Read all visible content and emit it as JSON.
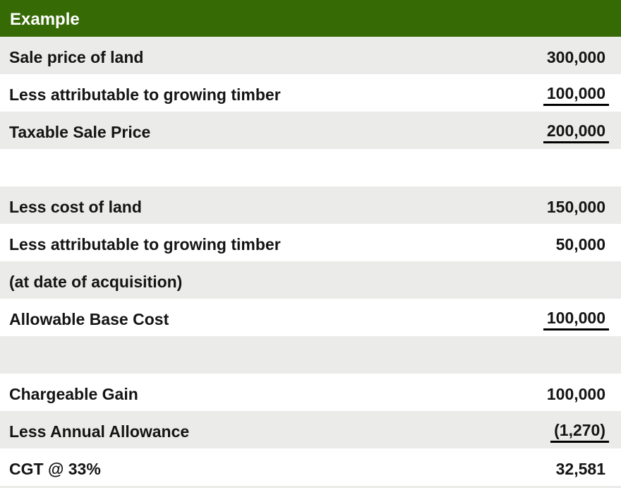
{
  "colors": {
    "header_bg": "#366A04",
    "header_text": "#FFFFFF",
    "row_shade": "#EBEBE9",
    "row_plain": "#FFFFFF",
    "text": "#141414",
    "underline": "#000000"
  },
  "table": {
    "header": "Example",
    "columns": [
      "item",
      "amount"
    ],
    "rows": [
      {
        "label": "Sale price of land",
        "value": "300,000",
        "underline": false
      },
      {
        "label": "Less attributable to growing timber",
        "value": "100,000",
        "underline": true
      },
      {
        "label": "Taxable Sale Price",
        "value": "200,000",
        "underline": true
      },
      {
        "label": "",
        "value": "",
        "underline": false
      },
      {
        "label": "Less cost of land",
        "value": "150,000",
        "underline": false
      },
      {
        "label": "Less attributable to growing timber",
        "value": "50,000",
        "underline": false
      },
      {
        "label": "(at date of acquisition)",
        "value": "",
        "underline": false
      },
      {
        "label": "Allowable Base Cost",
        "value": "100,000",
        "underline": true
      },
      {
        "label": "",
        "value": "",
        "underline": false
      },
      {
        "label": "Chargeable Gain",
        "value": "100,000",
        "underline": false
      },
      {
        "label": "Less Annual Allowance",
        "value": "(1,270)",
        "underline": true
      },
      {
        "label": "CGT @ 33%",
        "value": "32,581",
        "underline": false
      }
    ]
  }
}
